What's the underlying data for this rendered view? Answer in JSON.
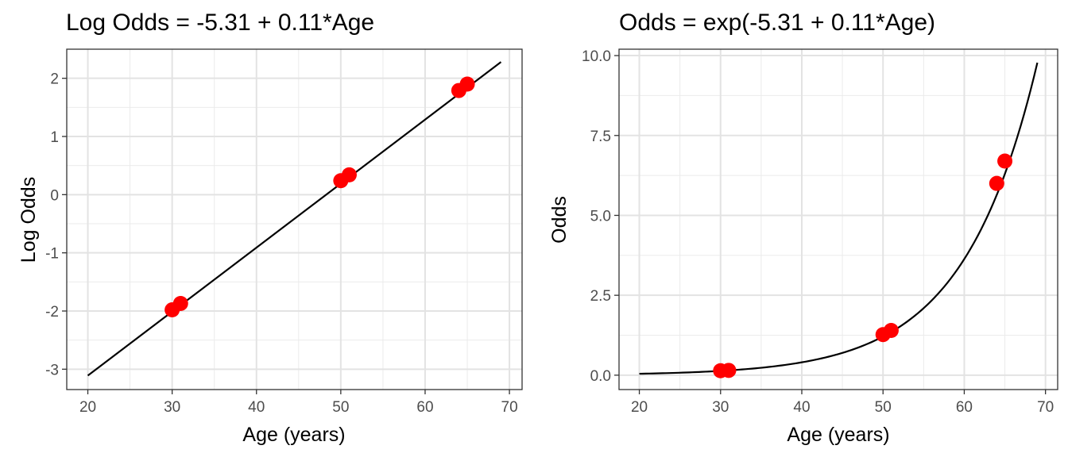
{
  "chart_data": [
    {
      "type": "line",
      "title": "Log Odds = -5.31 + 0.11*Age",
      "xlabel": "Age (years)",
      "ylabel": "Log Odds",
      "xlim": [
        17.5,
        71.5
      ],
      "ylim": [
        -3.35,
        2.5
      ],
      "x_ticks": [
        20,
        30,
        40,
        50,
        60,
        70
      ],
      "x_tick_labels": [
        "20",
        "30",
        "40",
        "50",
        "60",
        "70"
      ],
      "y_ticks": [
        -3,
        -2,
        -1,
        0,
        1,
        2
      ],
      "y_tick_labels": [
        "-3",
        "-2",
        "-1",
        "0",
        "1",
        "2"
      ],
      "grid": true,
      "series": [
        {
          "kind": "line",
          "color": "#000000",
          "intercept": -5.31,
          "slope": 0.11,
          "x_range": [
            20,
            69
          ]
        },
        {
          "kind": "points",
          "color": "#ff0000",
          "x": [
            30,
            31,
            50,
            51,
            64,
            65
          ],
          "y": [
            -1.98,
            -1.87,
            0.24,
            0.34,
            1.79,
            1.9
          ]
        }
      ]
    },
    {
      "type": "line",
      "title": "Odds = exp(-5.31 + 0.11*Age)",
      "xlabel": "Age (years)",
      "ylabel": "Odds",
      "xlim": [
        17.5,
        71.5
      ],
      "ylim": [
        -0.45,
        10.2
      ],
      "x_ticks": [
        20,
        30,
        40,
        50,
        60,
        70
      ],
      "x_tick_labels": [
        "20",
        "30",
        "40",
        "50",
        "60",
        "70"
      ],
      "y_ticks": [
        0,
        2.5,
        5,
        7.5,
        10
      ],
      "y_tick_labels": [
        "0.0",
        "2.5",
        "5.0",
        "7.5",
        "10.0"
      ],
      "grid": true,
      "series": [
        {
          "kind": "curve",
          "color": "#000000",
          "intercept": -5.31,
          "slope": 0.11,
          "x_range": [
            20,
            69
          ]
        },
        {
          "kind": "points",
          "color": "#ff0000",
          "x": [
            30,
            31,
            50,
            51,
            64,
            65
          ],
          "y": [
            0.14,
            0.15,
            1.27,
            1.4,
            6.0,
            6.7
          ]
        }
      ]
    }
  ]
}
